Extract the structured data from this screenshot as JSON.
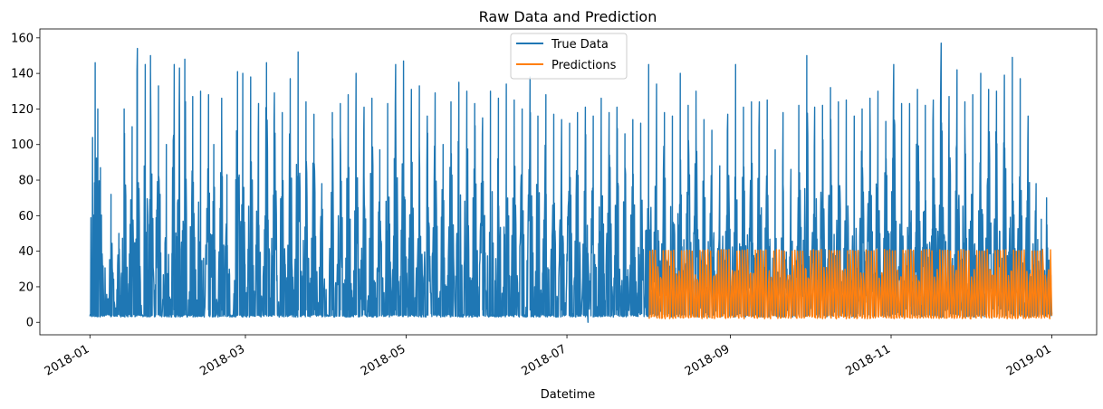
{
  "chart_data": {
    "type": "line",
    "title": "Raw Data and Prediction",
    "xlabel": "Datetime",
    "ylabel": "",
    "xlim": [
      "2017-12-13",
      "2019-01-18"
    ],
    "ylim": [
      -7,
      165
    ],
    "yticks": [
      0,
      20,
      40,
      60,
      80,
      100,
      120,
      140,
      160
    ],
    "xticks": [
      "2018-01",
      "2018-03",
      "2018-05",
      "2018-07",
      "2018-09",
      "2018-11",
      "2019-01"
    ],
    "legend": {
      "position": "top-center"
    },
    "grid": false,
    "series": [
      {
        "name": "True Data",
        "color": "#1f77b4",
        "x_range": [
          "2018-01-01",
          "2018-12-31"
        ],
        "sampling": "hourly",
        "baseline": 3,
        "peaks": [
          [
            "2018-01-02",
            104
          ],
          [
            "2018-01-03",
            146
          ],
          [
            "2018-01-04",
            120
          ],
          [
            "2018-01-05",
            87
          ],
          [
            "2018-01-09",
            72
          ],
          [
            "2018-01-12",
            50
          ],
          [
            "2018-01-14",
            120
          ],
          [
            "2018-01-17",
            110
          ],
          [
            "2018-01-19",
            154
          ],
          [
            "2018-01-22",
            145
          ],
          [
            "2018-01-24",
            150
          ],
          [
            "2018-01-27",
            133
          ],
          [
            "2018-01-30",
            100
          ],
          [
            "2018-02-02",
            145
          ],
          [
            "2018-02-04",
            143
          ],
          [
            "2018-02-06",
            148
          ],
          [
            "2018-02-09",
            127
          ],
          [
            "2018-02-12",
            130
          ],
          [
            "2018-02-15",
            128
          ],
          [
            "2018-02-17",
            100
          ],
          [
            "2018-02-20",
            126
          ],
          [
            "2018-02-22",
            83
          ],
          [
            "2018-02-26",
            141
          ],
          [
            "2018-02-28",
            140
          ],
          [
            "2018-03-03",
            138
          ],
          [
            "2018-03-06",
            123
          ],
          [
            "2018-03-09",
            146
          ],
          [
            "2018-03-12",
            129
          ],
          [
            "2018-03-15",
            118
          ],
          [
            "2018-03-18",
            137
          ],
          [
            "2018-03-21",
            152
          ],
          [
            "2018-03-24",
            124
          ],
          [
            "2018-03-27",
            117
          ],
          [
            "2018-03-30",
            78
          ],
          [
            "2018-04-03",
            118
          ],
          [
            "2018-04-06",
            123
          ],
          [
            "2018-04-09",
            128
          ],
          [
            "2018-04-12",
            140
          ],
          [
            "2018-04-15",
            121
          ],
          [
            "2018-04-18",
            126
          ],
          [
            "2018-04-21",
            97
          ],
          [
            "2018-04-24",
            123
          ],
          [
            "2018-04-27",
            145
          ],
          [
            "2018-04-30",
            147
          ],
          [
            "2018-05-03",
            131
          ],
          [
            "2018-05-06",
            133
          ],
          [
            "2018-05-09",
            116
          ],
          [
            "2018-05-12",
            129
          ],
          [
            "2018-05-15",
            100
          ],
          [
            "2018-05-18",
            124
          ],
          [
            "2018-05-21",
            135
          ],
          [
            "2018-05-24",
            130
          ],
          [
            "2018-05-27",
            123
          ],
          [
            "2018-05-30",
            115
          ],
          [
            "2018-06-02",
            130
          ],
          [
            "2018-06-05",
            126
          ],
          [
            "2018-06-08",
            134
          ],
          [
            "2018-06-11",
            125
          ],
          [
            "2018-06-14",
            120
          ],
          [
            "2018-06-17",
            138
          ],
          [
            "2018-06-20",
            116
          ],
          [
            "2018-06-23",
            128
          ],
          [
            "2018-06-26",
            117
          ],
          [
            "2018-06-29",
            114
          ],
          [
            "2018-07-02",
            112
          ],
          [
            "2018-07-05",
            118
          ],
          [
            "2018-07-08",
            121
          ],
          [
            "2018-07-11",
            116
          ],
          [
            "2018-07-14",
            126
          ],
          [
            "2018-07-17",
            118
          ],
          [
            "2018-07-20",
            121
          ],
          [
            "2018-07-23",
            106
          ],
          [
            "2018-07-26",
            114
          ],
          [
            "2018-07-29",
            112
          ],
          [
            "2018-08-01",
            145
          ],
          [
            "2018-08-04",
            134
          ],
          [
            "2018-08-07",
            118
          ],
          [
            "2018-08-10",
            116
          ],
          [
            "2018-08-13",
            140
          ],
          [
            "2018-08-16",
            122
          ],
          [
            "2018-08-19",
            130
          ],
          [
            "2018-08-22",
            114
          ],
          [
            "2018-08-25",
            108
          ],
          [
            "2018-08-28",
            88
          ],
          [
            "2018-08-31",
            117
          ],
          [
            "2018-09-03",
            145
          ],
          [
            "2018-09-06",
            121
          ],
          [
            "2018-09-09",
            124
          ],
          [
            "2018-09-12",
            124
          ],
          [
            "2018-09-15",
            125
          ],
          [
            "2018-09-18",
            97
          ],
          [
            "2018-09-21",
            118
          ],
          [
            "2018-09-24",
            86
          ],
          [
            "2018-09-27",
            122
          ],
          [
            "2018-09-30",
            150
          ],
          [
            "2018-10-03",
            121
          ],
          [
            "2018-10-06",
            122
          ],
          [
            "2018-10-09",
            132
          ],
          [
            "2018-10-12",
            124
          ],
          [
            "2018-10-15",
            125
          ],
          [
            "2018-10-18",
            116
          ],
          [
            "2018-10-21",
            120
          ],
          [
            "2018-10-24",
            126
          ],
          [
            "2018-10-27",
            130
          ],
          [
            "2018-10-30",
            113
          ],
          [
            "2018-11-02",
            145
          ],
          [
            "2018-11-05",
            123
          ],
          [
            "2018-11-08",
            123
          ],
          [
            "2018-11-11",
            131
          ],
          [
            "2018-11-14",
            122
          ],
          [
            "2018-11-17",
            125
          ],
          [
            "2018-11-20",
            157
          ],
          [
            "2018-11-23",
            127
          ],
          [
            "2018-11-26",
            142
          ],
          [
            "2018-11-29",
            124
          ],
          [
            "2018-12-02",
            128
          ],
          [
            "2018-12-05",
            140
          ],
          [
            "2018-12-08",
            131
          ],
          [
            "2018-12-11",
            130
          ],
          [
            "2018-12-14",
            139
          ],
          [
            "2018-12-17",
            149
          ],
          [
            "2018-12-20",
            137
          ],
          [
            "2018-12-23",
            116
          ],
          [
            "2018-12-26",
            78
          ],
          [
            "2018-12-28",
            58
          ],
          [
            "2018-12-30",
            70
          ]
        ],
        "minimum": [
          "2018-07-09",
          0
        ]
      },
      {
        "name": "Predictions",
        "color": "#ff7f0e",
        "x_range": [
          "2018-08-01",
          "2018-12-31"
        ],
        "sampling": "hourly",
        "min": 2,
        "max": 41,
        "daily_peak_typical": 40
      }
    ]
  }
}
